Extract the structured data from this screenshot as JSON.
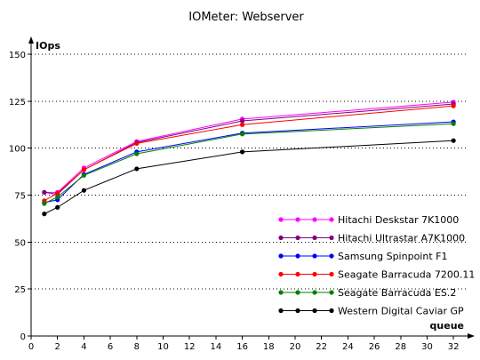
{
  "chart_data": {
    "type": "line",
    "title": "IOMeter: Webserver",
    "ylabel": "IOps",
    "xlabel": "queue",
    "xlim": [
      0,
      33
    ],
    "ylim": [
      0,
      150
    ],
    "x_ticks": [
      0,
      2,
      4,
      6,
      8,
      10,
      12,
      14,
      16,
      18,
      20,
      22,
      24,
      26,
      28,
      30,
      32
    ],
    "y_ticks": [
      0,
      25,
      50,
      75,
      100,
      125,
      150
    ],
    "grid": "horizontal-dotted",
    "legend_position": "bottom-right",
    "x": [
      1,
      2,
      4,
      8,
      16,
      32
    ],
    "series": [
      {
        "name": "Hitachi Deskstar 7K1000",
        "color": "#ff00ff",
        "values": [
          76.5,
          76.5,
          89.5,
          103.5,
          115.5,
          124.5
        ]
      },
      {
        "name": "Hitachi Ultrastar A7K1000",
        "color": "#800080",
        "values": [
          76.5,
          75.5,
          88.5,
          103,
          114.5,
          123.5
        ]
      },
      {
        "name": "Samsung Spinpoint F1",
        "color": "#0000ff",
        "values": [
          71,
          72.5,
          86,
          98,
          108,
          114
        ]
      },
      {
        "name": "Seagate Barracuda 7200.11",
        "color": "#ff0000",
        "values": [
          72,
          76,
          88.5,
          102.5,
          112.5,
          122.5
        ]
      },
      {
        "name": "Seagate Barracuda ES.2",
        "color": "#008000",
        "values": [
          70.5,
          74,
          85.5,
          97,
          107.5,
          113
        ]
      },
      {
        "name": "Western Digital Caviar GP",
        "color": "#000000",
        "values": [
          65,
          68.5,
          77.5,
          89,
          98,
          104
        ]
      }
    ]
  }
}
